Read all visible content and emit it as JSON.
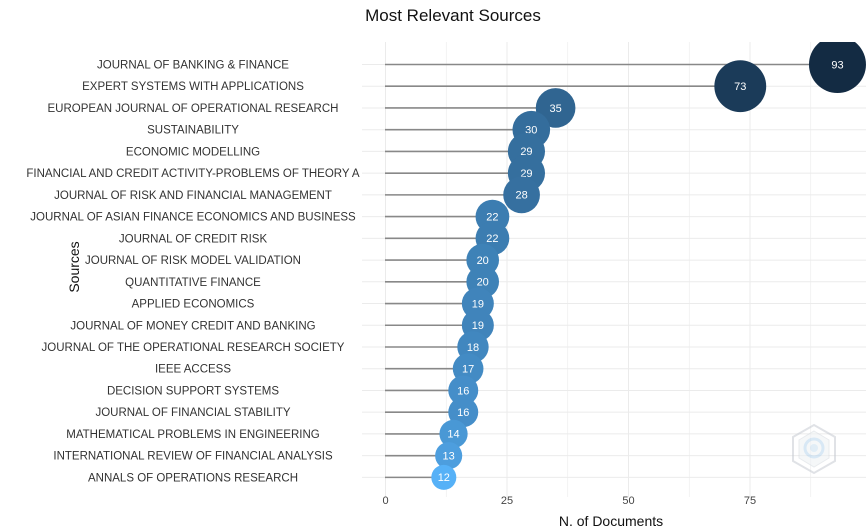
{
  "chart_data": {
    "type": "scatter",
    "title": "Most Relevant Sources",
    "xlabel": "N. of Documents",
    "ylabel": "Sources",
    "xlim": [
      0,
      97
    ],
    "xticks": [
      "0",
      "25",
      "50",
      "75"
    ],
    "grid": true,
    "categories": [
      "JOURNAL OF BANKING & FINANCE",
      "EXPERT SYSTEMS WITH APPLICATIONS",
      "EUROPEAN JOURNAL OF OPERATIONAL RESEARCH",
      "SUSTAINABILITY",
      "ECONOMIC MODELLING",
      "FINANCIAL AND CREDIT ACTIVITY-PROBLEMS OF THEORY A",
      "JOURNAL OF RISK AND FINANCIAL MANAGEMENT",
      "JOURNAL OF ASIAN FINANCE ECONOMICS AND BUSINESS",
      "JOURNAL OF CREDIT RISK",
      "JOURNAL OF RISK MODEL VALIDATION",
      "QUANTITATIVE FINANCE",
      "APPLIED ECONOMICS",
      "JOURNAL OF MONEY CREDIT AND BANKING",
      "JOURNAL OF THE OPERATIONAL RESEARCH SOCIETY",
      "IEEE ACCESS",
      "DECISION SUPPORT SYSTEMS",
      "JOURNAL OF FINANCIAL STABILITY",
      "MATHEMATICAL PROBLEMS IN ENGINEERING",
      "INTERNATIONAL REVIEW OF FINANCIAL ANALYSIS",
      "ANNALS OF OPERATIONS RESEARCH"
    ],
    "values": [
      93,
      73,
      35,
      30,
      29,
      29,
      28,
      22,
      22,
      20,
      20,
      19,
      19,
      18,
      17,
      16,
      16,
      14,
      13,
      12
    ],
    "colors": {
      "high": "#132b43",
      "low": "#56b1f7",
      "stem": "#888888",
      "grid": "#ebebeb"
    }
  },
  "watermark": {
    "icon": "bibliometrix-logo-icon"
  }
}
